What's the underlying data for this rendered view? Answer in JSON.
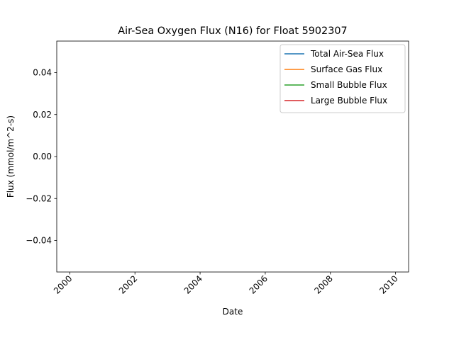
{
  "chart_data": {
    "type": "line",
    "title": "Air-Sea Oxygen Flux (N16) for Float 5902307",
    "xlabel": "Date",
    "ylabel": "Flux (mmol/m^2-s)",
    "x_ticks": [
      "2000",
      "2002",
      "2004",
      "2006",
      "2008",
      "2010"
    ],
    "y_ticks": [
      "0.04",
      "0.02",
      "0.00",
      "−0.02",
      "−0.04"
    ],
    "xlim": [
      1999.6,
      2010.4
    ],
    "ylim": [
      -0.055,
      0.055
    ],
    "grid": false,
    "legend_position": "top-right",
    "series": [
      {
        "name": "Total Air-Sea Flux",
        "color": "#1f77b4",
        "x": [],
        "y": []
      },
      {
        "name": "Surface Gas Flux",
        "color": "#ff7f0e",
        "x": [],
        "y": []
      },
      {
        "name": "Small Bubble Flux",
        "color": "#2ca02c",
        "x": [],
        "y": []
      },
      {
        "name": "Large Bubble Flux",
        "color": "#d62728",
        "x": [],
        "y": []
      }
    ]
  }
}
